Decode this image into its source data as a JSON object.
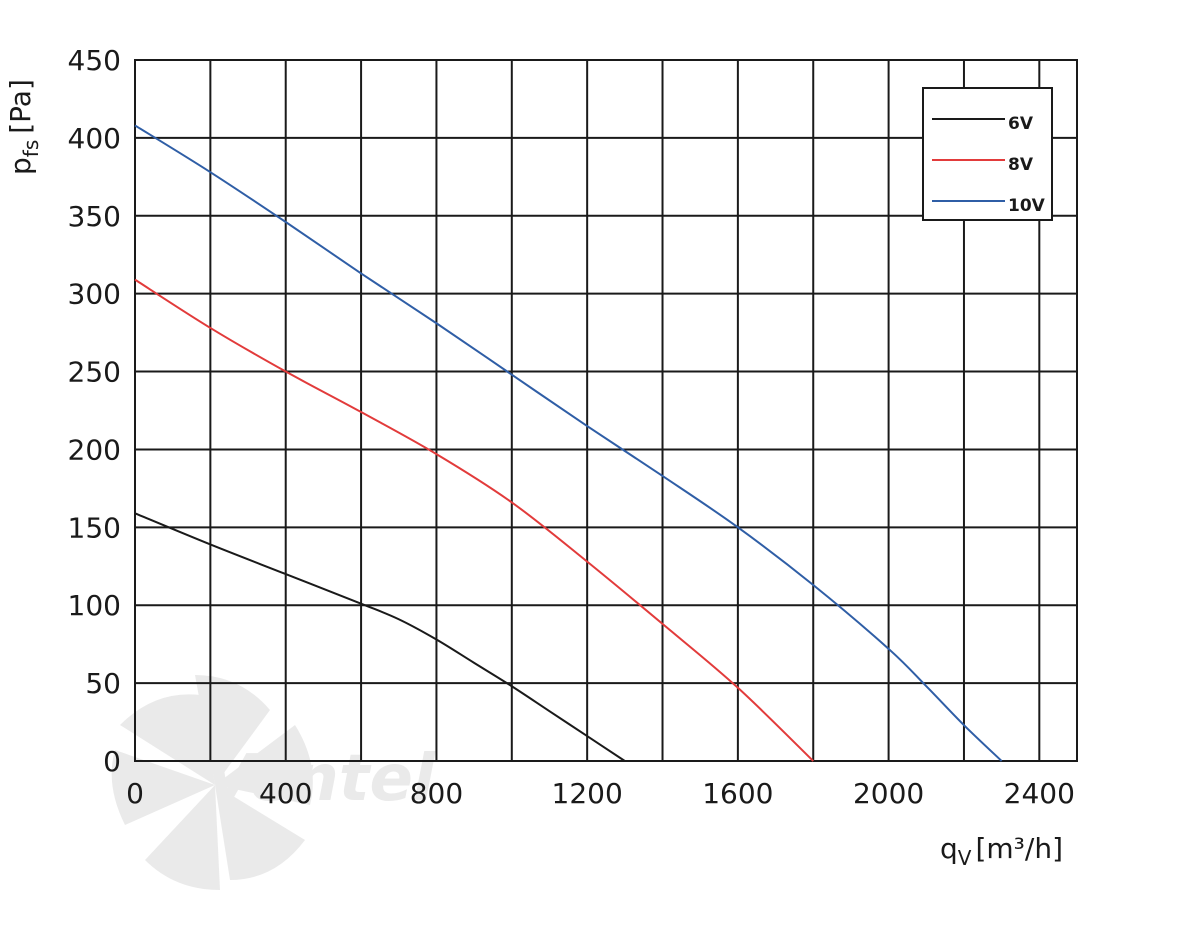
{
  "chart_data": {
    "type": "line",
    "title": "",
    "xlabel": "q",
    "xlabel_sub": "V",
    "xlabel_unit": "[m³/h]",
    "ylabel": "p",
    "ylabel_sub": "fs",
    "ylabel_unit": "[Pa]",
    "xlim": [
      0,
      2500
    ],
    "ylim": [
      0,
      450
    ],
    "x_ticks": [
      0,
      400,
      800,
      1200,
      1600,
      2000,
      2400
    ],
    "y_ticks": [
      0,
      50,
      100,
      150,
      200,
      250,
      300,
      350,
      400,
      450
    ],
    "x_grid_step": 200,
    "y_grid_step": 50,
    "grid": true,
    "legend_position": "top-right",
    "series": [
      {
        "name": "6V",
        "color": "#1a1a1a",
        "points": [
          [
            0,
            159
          ],
          [
            200,
            139
          ],
          [
            400,
            120
          ],
          [
            600,
            101
          ],
          [
            700,
            91
          ],
          [
            800,
            78
          ],
          [
            900,
            63
          ],
          [
            1000,
            48
          ],
          [
            1100,
            32
          ],
          [
            1200,
            16
          ],
          [
            1300,
            0
          ]
        ]
      },
      {
        "name": "8V",
        "color": "#e23b3b",
        "points": [
          [
            0,
            309
          ],
          [
            200,
            278
          ],
          [
            400,
            250
          ],
          [
            600,
            224
          ],
          [
            800,
            197
          ],
          [
            1000,
            166
          ],
          [
            1200,
            128
          ],
          [
            1400,
            88
          ],
          [
            1600,
            47
          ],
          [
            1800,
            0
          ]
        ]
      },
      {
        "name": "10V",
        "color": "#2f5ea6",
        "points": [
          [
            0,
            408
          ],
          [
            200,
            378
          ],
          [
            400,
            346
          ],
          [
            600,
            313
          ],
          [
            800,
            281
          ],
          [
            1000,
            248
          ],
          [
            1200,
            215
          ],
          [
            1400,
            183
          ],
          [
            1600,
            150
          ],
          [
            1800,
            113
          ],
          [
            2000,
            72
          ],
          [
            2100,
            48
          ],
          [
            2200,
            23
          ],
          [
            2300,
            0
          ]
        ]
      }
    ]
  },
  "watermark": {
    "text": "Ventel",
    "colors": [
      "#d9d9d9",
      "#aed2ee"
    ]
  }
}
